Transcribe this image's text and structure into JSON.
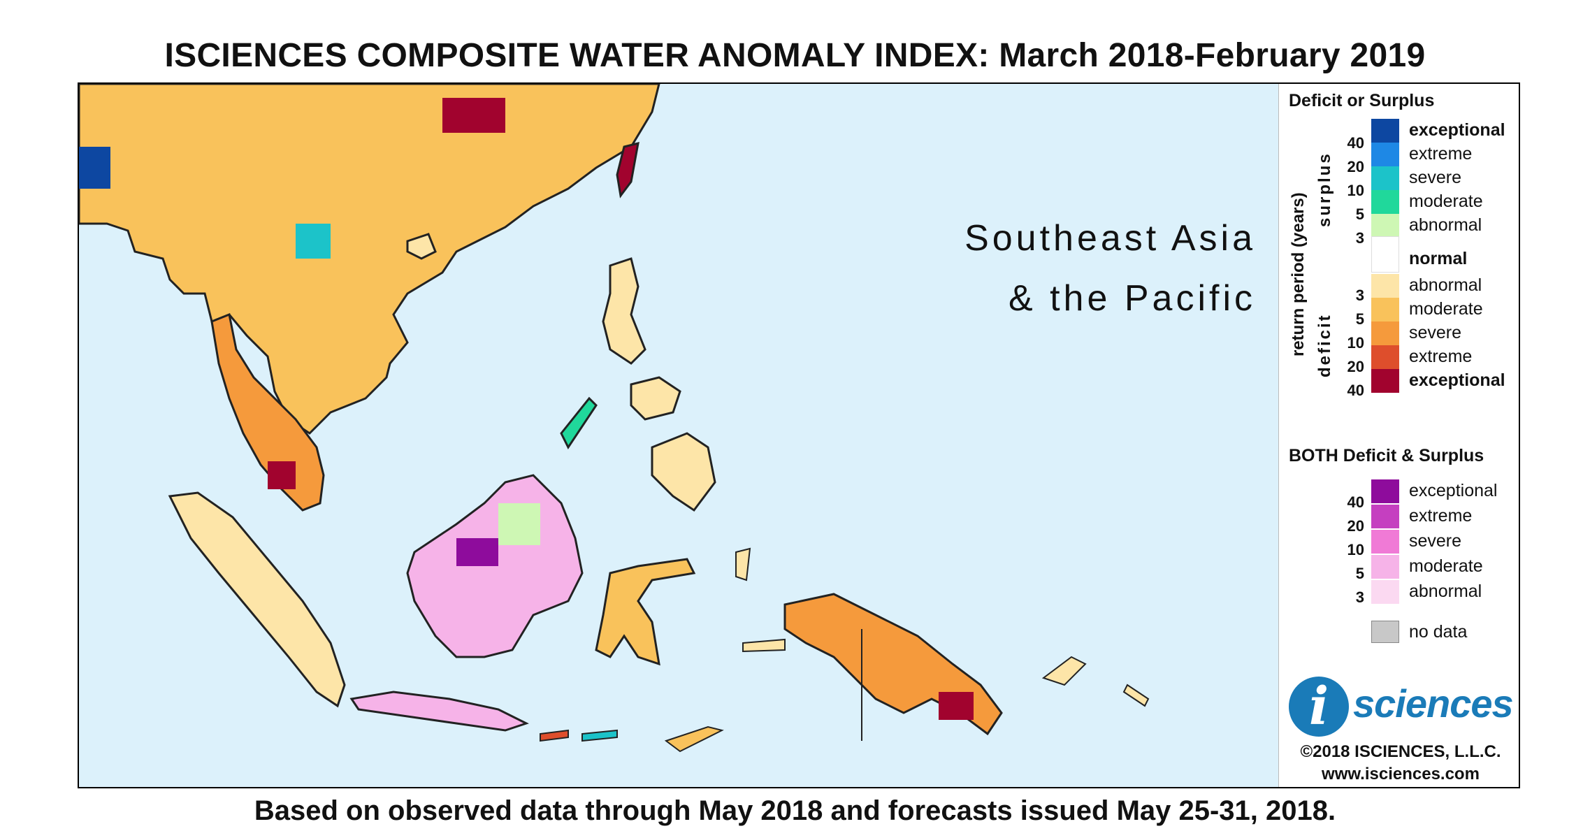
{
  "title": "ISCIENCES COMPOSITE WATER ANOMALY INDEX: March 2018-February 2019",
  "region_label_line1": "Southeast Asia",
  "region_label_line2": "& the Pacific",
  "footer": "Based on observed data through May 2018 and forecasts issued May 25-31, 2018.",
  "legend": {
    "deficit_surplus_heading": "Deficit or Surplus",
    "axis_label": "return period (years)",
    "surplus_label": "surplus",
    "deficit_label": "deficit",
    "surplus_ticks": [
      "40",
      "20",
      "10",
      "5",
      "3"
    ],
    "deficit_ticks": [
      "3",
      "5",
      "10",
      "20",
      "40"
    ],
    "surplus_items": [
      {
        "label": "exceptional",
        "color": "#0d47a1",
        "bold": true
      },
      {
        "label": "extreme",
        "color": "#1e88e5",
        "bold": false
      },
      {
        "label": "severe",
        "color": "#1cc3c9",
        "bold": false
      },
      {
        "label": "moderate",
        "color": "#20d89b",
        "bold": false
      },
      {
        "label": "abnormal",
        "color": "#cef7b4",
        "bold": false
      }
    ],
    "normal_item": {
      "label": "normal",
      "color": "#ffffff"
    },
    "deficit_items": [
      {
        "label": "abnormal",
        "color": "#fde5a8",
        "bold": false
      },
      {
        "label": "moderate",
        "color": "#f9c25b",
        "bold": false
      },
      {
        "label": "severe",
        "color": "#f59a3c",
        "bold": false
      },
      {
        "label": "extreme",
        "color": "#de4e2c",
        "bold": false
      },
      {
        "label": "exceptional",
        "color": "#a1032e",
        "bold": true
      }
    ],
    "both_heading": "BOTH Deficit & Surplus",
    "both_ticks": [
      "40",
      "20",
      "10",
      "5",
      "3"
    ],
    "both_items": [
      {
        "label": "exceptional",
        "color": "#8e0c9c"
      },
      {
        "label": "extreme",
        "color": "#c53fc0"
      },
      {
        "label": "severe",
        "color": "#f07ad6"
      },
      {
        "label": "moderate",
        "color": "#f6b3e8"
      },
      {
        "label": "abnormal",
        "color": "#fbd9f1"
      }
    ],
    "no_data": {
      "label": "no data",
      "color": "#c8c8c8"
    }
  },
  "logo": {
    "glyph": "i",
    "text": "sciences"
  },
  "copyright": "©2018 ISCIENCES, L.L.C.",
  "website": "www.isciences.com"
}
